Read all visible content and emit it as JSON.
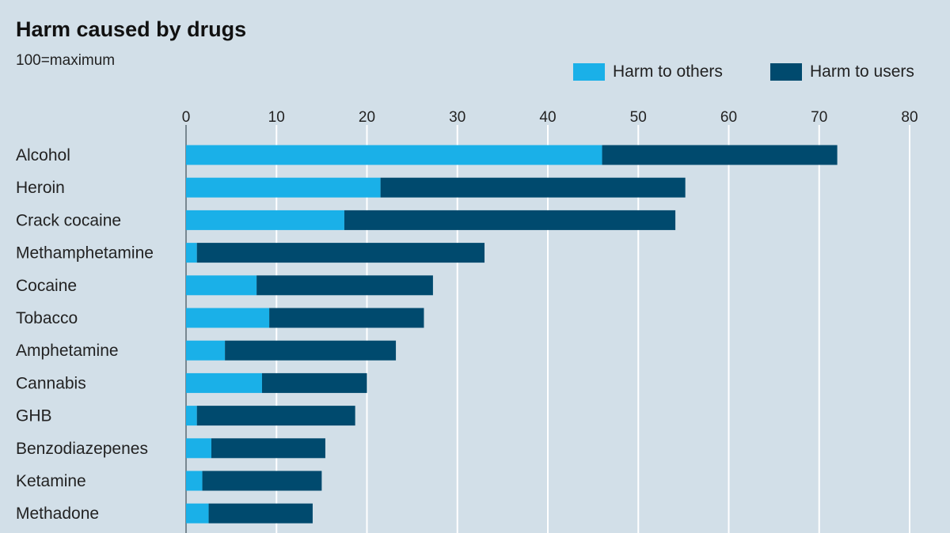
{
  "chart_data": {
    "type": "bar",
    "stacked": true,
    "orientation": "horizontal",
    "title": "Harm caused by drugs",
    "subtitle": "100=maximum",
    "categories": [
      "Alcohol",
      "Heroin",
      "Crack cocaine",
      "Methamphetamine",
      "Cocaine",
      "Tobacco",
      "Amphetamine",
      "Cannabis",
      "GHB",
      "Benzodiazepenes",
      "Ketamine",
      "Methadone"
    ],
    "series": [
      {
        "name": "Harm to others",
        "color": "#1ab0e8",
        "values": [
          46,
          21.5,
          17.5,
          1.2,
          7.8,
          9.2,
          4.3,
          8.4,
          1.2,
          2.8,
          1.8,
          2.5
        ]
      },
      {
        "name": "Harm to users",
        "color": "#004a6e",
        "values": [
          26,
          33.7,
          36.6,
          31.8,
          19.5,
          17.1,
          18.9,
          11.6,
          17.5,
          12.6,
          13.2,
          11.5
        ]
      }
    ],
    "xlim": [
      0,
      80
    ],
    "xticks": [
      0,
      10,
      20,
      30,
      40,
      50,
      60,
      70,
      80
    ],
    "grid": true,
    "legend_position": "top-right"
  }
}
